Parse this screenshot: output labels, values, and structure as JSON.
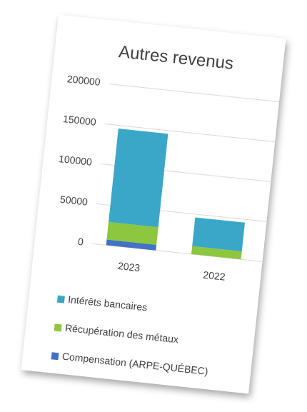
{
  "chart_data": {
    "type": "stacked_bar",
    "title": "Autres revenus",
    "categories": [
      "2023",
      "2022"
    ],
    "series": [
      {
        "name": "Intérêts bancaires",
        "color": "#3ba7c8",
        "values": [
          117000,
          36000
        ]
      },
      {
        "name": "Récupération des métaux",
        "color": "#8dc63f",
        "values": [
          22000,
          10000
        ]
      },
      {
        "name": "Compensation (ARPE-QUÉBEC)",
        "color": "#4472c4",
        "values": [
          7000,
          0
        ]
      }
    ],
    "stack_order": [
      2,
      1,
      0
    ],
    "ylim": [
      0,
      200000
    ],
    "yticks": [
      0,
      50000,
      100000,
      150000,
      200000
    ],
    "grid": true
  }
}
